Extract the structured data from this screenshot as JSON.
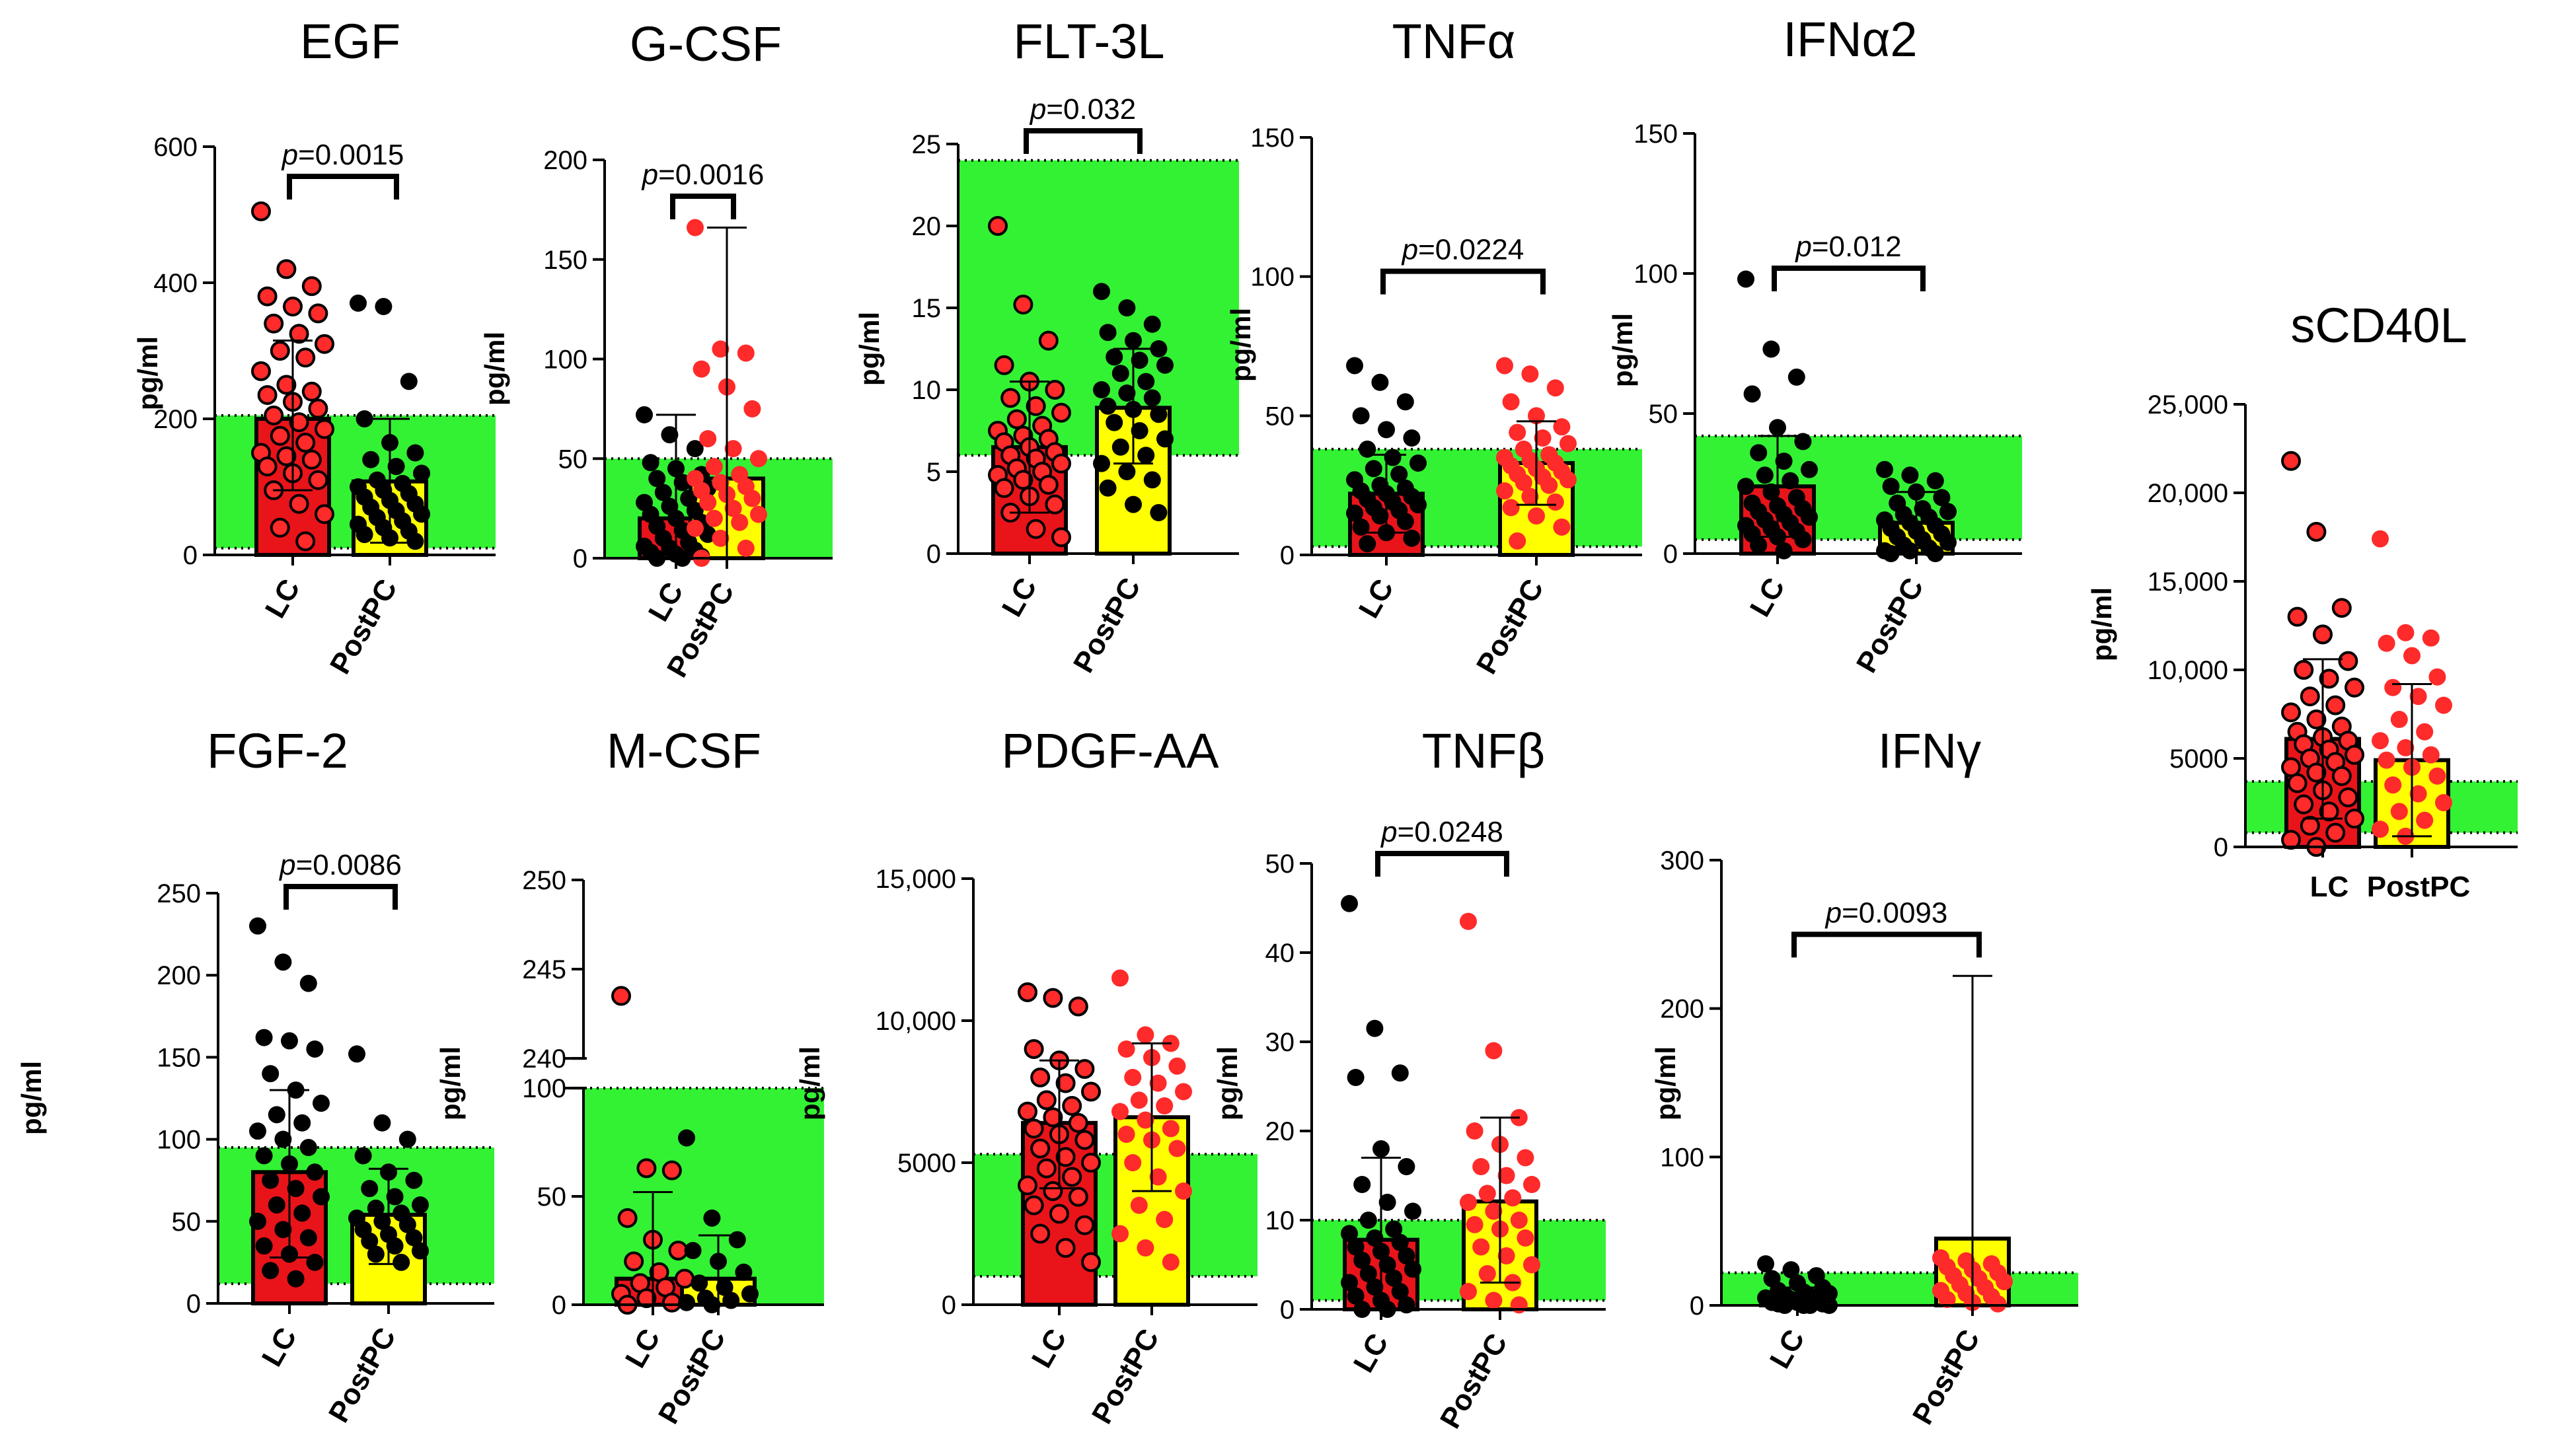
{
  "colors": {
    "reference_band": "#33f233",
    "lc_bar": "#e8141a",
    "postpc_bar": "#ffff00",
    "black_dot": "#000000",
    "red_dot": "#ff2a2a"
  },
  "chart_data": [
    {
      "type": "bar",
      "title": "EGF",
      "ylabel": "pg/ml",
      "categories": [
        "LC",
        "PostPC"
      ],
      "values": [
        200,
        108
      ],
      "error_upper": [
        315,
        200
      ],
      "error_lower": [
        95,
        18
      ],
      "ylim": [
        0,
        600
      ],
      "yticks": [
        0,
        200,
        400,
        600
      ],
      "ytick_labels": [
        "0",
        "200",
        "400",
        "600"
      ],
      "reference_range": [
        10,
        205
      ],
      "p_value": "=0.0015",
      "points": [
        [
          505,
          420,
          395,
          380,
          365,
          355,
          340,
          325,
          310,
          300,
          290,
          270,
          250,
          240,
          235,
          225,
          215,
          205,
          195,
          185,
          175,
          165,
          150,
          145,
          140,
          130,
          120,
          110,
          95,
          75,
          60,
          40,
          20
        ],
        [
          370,
          365,
          255,
          200,
          165,
          150,
          140,
          130,
          120,
          110,
          105,
          100,
          95,
          90,
          85,
          80,
          75,
          70,
          65,
          60,
          55,
          50,
          45,
          40,
          35,
          30,
          25,
          20
        ]
      ],
      "point_colors": [
        "red_dot",
        "black_dot"
      ],
      "point_outline": [
        true,
        false
      ]
    },
    {
      "type": "bar",
      "title": "G-CSF",
      "ylabel": "pg/ml",
      "categories": [
        "LC",
        "PostPC"
      ],
      "values": [
        20,
        40
      ],
      "error_upper": [
        72,
        166
      ],
      "error_lower": [
        0,
        0
      ],
      "ylim": [
        0,
        200
      ],
      "yticks": [
        0,
        50,
        100,
        150,
        200
      ],
      "ytick_labels": [
        "0",
        "50",
        "100",
        "150",
        "200"
      ],
      "reference_range": [
        0,
        50
      ],
      "p_value": "=0.0016",
      "points": [
        [
          72,
          62,
          55,
          48,
          45,
          42,
          40,
          38,
          35,
          33,
          30,
          28,
          26,
          24,
          22,
          20,
          18,
          16,
          14,
          12,
          10,
          8,
          6,
          5,
          4,
          3,
          2,
          1,
          0,
          0
        ],
        [
          166,
          105,
          103,
          95,
          86,
          75,
          60,
          55,
          50,
          46,
          42,
          40,
          38,
          36,
          34,
          32,
          30,
          28,
          25,
          22,
          20,
          18,
          15,
          10,
          5,
          0
        ]
      ],
      "point_colors": [
        "black_dot",
        "red_dot"
      ],
      "point_outline": [
        false,
        false
      ]
    },
    {
      "type": "bar",
      "title": "FLT-3L",
      "ylabel": "pg/ml",
      "categories": [
        "LC",
        "PostPC"
      ],
      "values": [
        6.5,
        8.9
      ],
      "error_upper": [
        10.5,
        12.5
      ],
      "error_lower": [
        2.5,
        5.5
      ],
      "ylim": [
        0,
        25
      ],
      "yticks": [
        0,
        5,
        10,
        15,
        20,
        25
      ],
      "ytick_labels": [
        "0",
        "5",
        "10",
        "15",
        "20",
        "25"
      ],
      "reference_range": [
        6,
        24
      ],
      "p_value": "=0.032",
      "points": [
        [
          20,
          15.2,
          13,
          11.5,
          10.5,
          10,
          9.5,
          9,
          8.6,
          8.2,
          7.8,
          7.5,
          7.2,
          7,
          6.8,
          6.5,
          6.2,
          6,
          5.8,
          5.5,
          5.2,
          5,
          4.8,
          4.5,
          4.2,
          4,
          3.5,
          3,
          2.5,
          1.5,
          1
        ],
        [
          16,
          15,
          14,
          13.5,
          13,
          12.5,
          12,
          11.8,
          11.5,
          11,
          10.5,
          10,
          9.8,
          9.5,
          9,
          8.8,
          8.5,
          8,
          7.5,
          7,
          6.5,
          6,
          5.5,
          5,
          4.5,
          4,
          3,
          2.5
        ]
      ],
      "point_colors": [
        "red_dot",
        "black_dot"
      ],
      "point_outline": [
        true,
        false
      ]
    },
    {
      "type": "bar",
      "title": "TNFα",
      "ylabel": "pg/ml",
      "categories": [
        "LC",
        "PostPC"
      ],
      "values": [
        22,
        33
      ],
      "error_upper": [
        36,
        48
      ],
      "error_lower": [
        8,
        18
      ],
      "ylim": [
        0,
        150
      ],
      "yticks": [
        0,
        50,
        100,
        150
      ],
      "ytick_labels": [
        "0",
        "50",
        "100",
        "150"
      ],
      "reference_range": [
        3,
        38
      ],
      "p_value": "=0.0224",
      "points": [
        [
          68,
          62,
          55,
          50,
          45,
          42,
          38,
          35,
          33,
          31,
          29,
          27,
          25,
          24,
          23,
          22,
          21,
          20,
          19,
          18,
          17,
          16,
          15,
          14,
          12,
          10,
          8,
          6,
          4
        ],
        [
          68,
          65,
          60,
          55,
          50,
          46,
          44,
          42,
          40,
          38,
          36,
          35,
          34,
          33,
          32,
          31,
          30,
          29,
          28,
          27,
          26,
          25,
          23,
          21,
          19,
          17,
          14,
          10,
          5
        ]
      ],
      "point_colors": [
        "black_dot",
        "red_dot"
      ],
      "point_outline": [
        false,
        false
      ]
    },
    {
      "type": "bar",
      "title": "IFNα2",
      "ylabel": "pg/ml",
      "categories": [
        "LC",
        "PostPC"
      ],
      "values": [
        24,
        11
      ],
      "error_upper": [
        42,
        22
      ],
      "error_lower": [
        6,
        2
      ],
      "ylim": [
        0,
        150
      ],
      "yticks": [
        0,
        50,
        100,
        150
      ],
      "ytick_labels": [
        "0",
        "50",
        "100",
        "150"
      ],
      "reference_range": [
        5,
        42
      ],
      "p_value": "=0.012",
      "points": [
        [
          98,
          73,
          63,
          57,
          45,
          40,
          36,
          33,
          30,
          28,
          26,
          24,
          22,
          20,
          18,
          17,
          16,
          15,
          14,
          13,
          12,
          11,
          10,
          9,
          8,
          7,
          6,
          5,
          3,
          1
        ],
        [
          30,
          28,
          26,
          24,
          22,
          20,
          18,
          16,
          15,
          14,
          13,
          12,
          11,
          10,
          9,
          8,
          7,
          6,
          5,
          4,
          3,
          2,
          1,
          1,
          0,
          0
        ]
      ],
      "point_colors": [
        "black_dot",
        "black_dot"
      ],
      "point_outline": [
        false,
        false
      ]
    },
    {
      "type": "bar",
      "title": "sCD40L",
      "ylabel": "pg/ml",
      "categories": [
        "LC",
        "PostPC"
      ],
      "values": [
        6100,
        4900
      ],
      "error_upper": [
        10600,
        9200
      ],
      "error_lower": [
        1600,
        600
      ],
      "ylim": [
        0,
        25000
      ],
      "yticks": [
        0,
        5000,
        10000,
        15000,
        20000,
        25000
      ],
      "ytick_labels": [
        "0",
        "5000",
        "10,000",
        "15,000",
        "20,000",
        "25,000"
      ],
      "reference_range": [
        800,
        3700
      ],
      "p_value": "",
      "points": [
        [
          21800,
          17800,
          13500,
          13000,
          12000,
          10500,
          10000,
          9500,
          9000,
          8500,
          8000,
          7600,
          7200,
          6800,
          6500,
          6200,
          6000,
          5800,
          5500,
          5200,
          5000,
          4800,
          4500,
          4200,
          4000,
          3600,
          3200,
          2800,
          2400,
          2000,
          1600,
          1200,
          800,
          400,
          0
        ],
        [
          17400,
          12100,
          11800,
          11500,
          10800,
          9600,
          9000,
          8500,
          8000,
          7200,
          6500,
          6000,
          5600,
          5200,
          4900,
          4500,
          4000,
          3500,
          3000,
          2500,
          2000,
          1500,
          1000,
          600
        ]
      ],
      "point_colors": [
        "red_dot",
        "red_dot"
      ],
      "point_outline": [
        true,
        false
      ]
    },
    {
      "type": "bar",
      "title": "FGF-2",
      "ylabel": "pg/ml",
      "categories": [
        "LC",
        "PostPC"
      ],
      "values": [
        80,
        54
      ],
      "error_upper": [
        130,
        82
      ],
      "error_lower": [
        28,
        24
      ],
      "ylim": [
        0,
        250
      ],
      "yticks": [
        0,
        50,
        100,
        150,
        200,
        250
      ],
      "ytick_labels": [
        "0",
        "50",
        "100",
        "150",
        "200",
        "250"
      ],
      "reference_range": [
        12,
        95
      ],
      "p_value": "=0.0086",
      "points": [
        [
          230,
          208,
          195,
          162,
          160,
          155,
          140,
          130,
          122,
          115,
          110,
          105,
          100,
          95,
          90,
          85,
          80,
          75,
          70,
          65,
          60,
          55,
          50,
          45,
          40,
          35,
          30,
          25,
          20,
          15
        ],
        [
          152,
          110,
          100,
          90,
          80,
          75,
          70,
          65,
          60,
          58,
          55,
          52,
          50,
          48,
          45,
          42,
          40,
          38,
          35,
          32,
          30,
          25
        ]
      ],
      "point_colors": [
        "black_dot",
        "black_dot"
      ],
      "point_outline": [
        false,
        false
      ]
    },
    {
      "type": "bar",
      "title": "M-CSF",
      "ylabel": "pg/ml",
      "categories": [
        "LC",
        "PostPC"
      ],
      "values": [
        12,
        12
      ],
      "error_upper": [
        52,
        32
      ],
      "error_lower": [
        0,
        0
      ],
      "ylim": [
        0,
        250
      ],
      "ybreak": [
        100,
        240
      ],
      "yticks": [
        0,
        50,
        100,
        240,
        245,
        250
      ],
      "ytick_labels": [
        "0",
        "50",
        "100",
        "240",
        "245",
        "250"
      ],
      "reference_range": [
        0,
        100
      ],
      "p_value": "",
      "points": [
        [
          243.5,
          63,
          62,
          40,
          30,
          25,
          20,
          15,
          12,
          10,
          8,
          5,
          3,
          1,
          0
        ],
        [
          77,
          40,
          30,
          25,
          20,
          15,
          10,
          8,
          5,
          3,
          2,
          1,
          0
        ]
      ],
      "point_colors": [
        "red_dot",
        "black_dot"
      ],
      "point_outline": [
        true,
        false
      ]
    },
    {
      "type": "bar",
      "title": "PDGF-AA",
      "ylabel": "pg/ml",
      "categories": [
        "LC",
        "PostPC"
      ],
      "values": [
        6400,
        6600
      ],
      "error_upper": [
        8600,
        9200
      ],
      "error_lower": [
        4100,
        4000
      ],
      "ylim": [
        0,
        15000
      ],
      "yticks": [
        0,
        5000,
        10000,
        15000
      ],
      "ytick_labels": [
        "0",
        "5000",
        "10,000",
        "15,000"
      ],
      "reference_range": [
        1000,
        5300
      ],
      "p_value": "",
      "points": [
        [
          11000,
          10800,
          10500,
          9000,
          8600,
          8300,
          8000,
          7800,
          7500,
          7200,
          7000,
          6800,
          6600,
          6400,
          6200,
          6000,
          5800,
          5500,
          5200,
          5000,
          4800,
          4500,
          4200,
          4000,
          3800,
          3500,
          3200,
          2800,
          2500,
          2000,
          1500
        ],
        [
          11500,
          9500,
          9200,
          9000,
          8700,
          8400,
          8000,
          7800,
          7500,
          7200,
          7000,
          6800,
          6500,
          6200,
          6000,
          5800,
          5500,
          5000,
          4500,
          4000,
          3500,
          3000,
          2500,
          2000,
          1500
        ]
      ],
      "point_colors": [
        "red_dot",
        "red_dot"
      ],
      "point_outline": [
        true,
        false
      ]
    },
    {
      "type": "bar",
      "title": "TNFβ",
      "ylabel": "pg/ml",
      "categories": [
        "LC",
        "PostPC"
      ],
      "values": [
        7.8,
        12.1
      ],
      "error_upper": [
        17,
        21.5
      ],
      "error_lower": [
        0,
        3
      ],
      "ylim": [
        0,
        50
      ],
      "yticks": [
        0,
        10,
        20,
        30,
        40,
        50
      ],
      "ytick_labels": [
        "0",
        "10",
        "20",
        "30",
        "40",
        "50"
      ],
      "reference_range": [
        1,
        10
      ],
      "p_value": "=0.0248",
      "points": [
        [
          45.5,
          31.5,
          26.5,
          26,
          18,
          16,
          14,
          12,
          11,
          10,
          9,
          8.5,
          8,
          7.5,
          7,
          6.5,
          6,
          5.5,
          5,
          4.5,
          4,
          3.5,
          3,
          2.5,
          2,
          1.5,
          1,
          0.5,
          0,
          0
        ],
        [
          43.5,
          29,
          21.5,
          20,
          18.5,
          17,
          16,
          15,
          14,
          13,
          12.5,
          12,
          11,
          10,
          9.5,
          9,
          8,
          7,
          6,
          5,
          4,
          3,
          2,
          1,
          0.5
        ]
      ],
      "point_colors": [
        "black_dot",
        "red_dot"
      ],
      "point_outline": [
        false,
        false
      ]
    },
    {
      "type": "bar",
      "title": "IFNγ",
      "ylabel": "pg/ml",
      "categories": [
        "LC",
        "PostPC"
      ],
      "values": [
        2,
        45
      ],
      "error_upper": [
        12,
        222
      ],
      "error_lower": [
        0,
        0
      ],
      "ylim": [
        0,
        300
      ],
      "yticks": [
        0,
        100,
        200,
        300
      ],
      "ytick_labels": [
        "0",
        "100",
        "200",
        "300"
      ],
      "reference_range": [
        0,
        22
      ],
      "p_value": "=0.0093",
      "points": [
        [
          28,
          24,
          20,
          18,
          15,
          12,
          10,
          9,
          8,
          7,
          6,
          5,
          4,
          3,
          2,
          2,
          1,
          1,
          0,
          0,
          0,
          0
        ],
        [
          32,
          30,
          28,
          26,
          24,
          22,
          20,
          18,
          16,
          14,
          12,
          10,
          8,
          6,
          4,
          2,
          1
        ]
      ],
      "point_colors": [
        "black_dot",
        "red_dot"
      ],
      "point_outline": [
        false,
        false
      ]
    }
  ]
}
